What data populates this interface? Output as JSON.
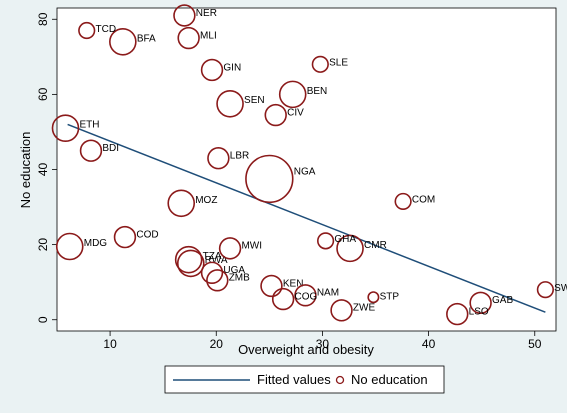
{
  "chart_data": {
    "type": "scatter",
    "xlabel": "Overweight and obesity",
    "ylabel": "No education",
    "xlim": [
      5,
      52
    ],
    "ylim": [
      -3,
      83
    ],
    "xticks": [
      10,
      20,
      30,
      40,
      50
    ],
    "yticks": [
      0,
      20,
      40,
      60,
      80
    ],
    "grid": false,
    "legend_position": "bottom",
    "colors": {
      "fitted_line": "#1f4e79",
      "marker": "#8b1a1a",
      "plot_bg": "#ffffff",
      "page_bg": "#eaf2f3"
    },
    "fitted_line": {
      "name": "Fitted values",
      "x": [
        6.0,
        51.0
      ],
      "y": [
        52.0,
        2.0
      ]
    },
    "series": [
      {
        "name": "No education",
        "points": [
          {
            "label": "NER",
            "x": 17.0,
            "y": 81.0,
            "weight": 4
          },
          {
            "label": "TCD",
            "x": 7.8,
            "y": 77.0,
            "weight": 3
          },
          {
            "label": "BFA",
            "x": 11.2,
            "y": 74.0,
            "weight": 5
          },
          {
            "label": "MLI",
            "x": 17.4,
            "y": 75.0,
            "weight": 4
          },
          {
            "label": "GIN",
            "x": 19.6,
            "y": 66.5,
            "weight": 4
          },
          {
            "label": "SLE",
            "x": 29.8,
            "y": 68.0,
            "weight": 3
          },
          {
            "label": "BEN",
            "x": 27.2,
            "y": 60.0,
            "weight": 5
          },
          {
            "label": "SEN",
            "x": 21.3,
            "y": 57.5,
            "weight": 5
          },
          {
            "label": "CIV",
            "x": 25.6,
            "y": 54.5,
            "weight": 4
          },
          {
            "label": "ETH",
            "x": 5.8,
            "y": 51.0,
            "weight": 5
          },
          {
            "label": "BDI",
            "x": 8.2,
            "y": 45.0,
            "weight": 4
          },
          {
            "label": "LBR",
            "x": 20.2,
            "y": 43.0,
            "weight": 4
          },
          {
            "label": "NGA",
            "x": 25.0,
            "y": 37.5,
            "weight": 9
          },
          {
            "label": "MOZ",
            "x": 16.7,
            "y": 31.0,
            "weight": 5
          },
          {
            "label": "COM",
            "x": 37.6,
            "y": 31.5,
            "weight": 3
          },
          {
            "label": "MDG",
            "x": 6.2,
            "y": 19.5,
            "weight": 5
          },
          {
            "label": "COD",
            "x": 11.4,
            "y": 22.0,
            "weight": 4
          },
          {
            "label": "MWI",
            "x": 21.3,
            "y": 19.0,
            "weight": 4
          },
          {
            "label": "GHA",
            "x": 30.3,
            "y": 21.0,
            "weight": 3
          },
          {
            "label": "CMR",
            "x": 32.6,
            "y": 19.0,
            "weight": 5
          },
          {
            "label": "TZA",
            "x": 17.4,
            "y": 16.0,
            "weight": 5
          },
          {
            "label": "RWA",
            "x": 17.6,
            "y": 15.0,
            "weight": 5
          },
          {
            "label": "UGA",
            "x": 19.6,
            "y": 12.5,
            "weight": 4
          },
          {
            "label": "ZMB",
            "x": 20.1,
            "y": 10.5,
            "weight": 4
          },
          {
            "label": "KEN",
            "x": 25.2,
            "y": 9.0,
            "weight": 4
          },
          {
            "label": "NAM",
            "x": 28.4,
            "y": 6.5,
            "weight": 4
          },
          {
            "label": "COG",
            "x": 26.3,
            "y": 5.5,
            "weight": 4
          },
          {
            "label": "STP",
            "x": 34.8,
            "y": 6.0,
            "weight": 2
          },
          {
            "label": "ZWE",
            "x": 31.8,
            "y": 2.5,
            "weight": 4
          },
          {
            "label": "SWZ",
            "x": 51.0,
            "y": 8.0,
            "weight": 3
          },
          {
            "label": "GAB",
            "x": 44.9,
            "y": 4.5,
            "weight": 4
          },
          {
            "label": "LSO",
            "x": 42.7,
            "y": 1.5,
            "weight": 4
          }
        ]
      }
    ]
  },
  "legend": {
    "line_label": "Fitted values",
    "marker_label": "No education"
  }
}
